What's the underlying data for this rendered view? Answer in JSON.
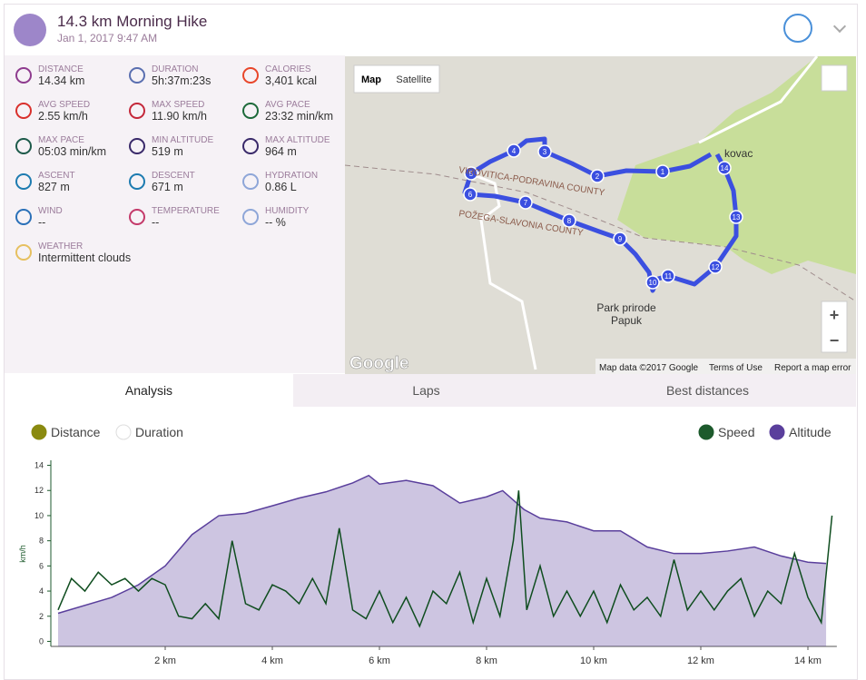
{
  "header": {
    "title": "14.3 km Morning Hike",
    "date": "Jan 1, 2017 9:47 AM"
  },
  "stats": [
    {
      "label": "DISTANCE",
      "value": "14.34 km"
    },
    {
      "label": "DURATION",
      "value": "5h:37m:23s"
    },
    {
      "label": "CALORIES",
      "value": "3,401 kcal"
    },
    {
      "label": "AVG SPEED",
      "value": "2.55 km/h"
    },
    {
      "label": "MAX SPEED",
      "value": "11.90 km/h"
    },
    {
      "label": "AVG PACE",
      "value": "23:32 min/km"
    },
    {
      "label": "MAX PACE",
      "value": "05:03 min/km"
    },
    {
      "label": "MIN ALTITUDE",
      "value": "519 m"
    },
    {
      "label": "MAX ALTITUDE",
      "value": "964 m"
    },
    {
      "label": "ASCENT",
      "value": "827 m"
    },
    {
      "label": "DESCENT",
      "value": "671 m"
    },
    {
      "label": "HYDRATION",
      "value": "0.86 L"
    },
    {
      "label": "WIND",
      "value": "--"
    },
    {
      "label": "TEMPERATURE",
      "value": "--"
    },
    {
      "label": "HUMIDITY",
      "value": "-- %"
    },
    {
      "label": "WEATHER",
      "value": "Intermittent clouds"
    }
  ],
  "map": {
    "buttons": [
      "Map",
      "Satellite"
    ],
    "zoom": [
      "+",
      "−"
    ],
    "labels": [
      "VIROVITICA-PODRAVINA COUNTY",
      "POŽEGA-SLAVONIA COUNTY",
      "Park prirode",
      "Papuk",
      "kovac"
    ],
    "markers": [
      "1",
      "2",
      "3",
      "4",
      "5",
      "6",
      "7",
      "8",
      "9",
      "10",
      "11",
      "12",
      "13",
      "14"
    ],
    "logo": "Google",
    "footer": [
      "Map data ©2017 Google",
      "Terms of Use",
      "Report a map error"
    ]
  },
  "tabs": [
    "Analysis",
    "Laps",
    "Best distances"
  ],
  "toggles": [
    {
      "label": "Distance",
      "checked": true,
      "color": "#8a8a10"
    },
    {
      "label": "Duration",
      "checked": false,
      "color": "#999999"
    },
    {
      "label": "Speed",
      "checked": true,
      "color": "#1d5a2c"
    },
    {
      "label": "Altitude",
      "checked": true,
      "color": "#5a3f9c"
    }
  ],
  "chart_data": {
    "type": "line",
    "y_label": "km/h",
    "xlim": [
      -0.14,
      14.54
    ],
    "ylim": [
      -0.4,
      14.4
    ],
    "y2lim": [
      412,
      1013
    ],
    "xticks": [
      {
        "value": 2,
        "label": "2 km"
      },
      {
        "value": 4,
        "label": "4 km"
      },
      {
        "value": 6,
        "label": "6 km"
      },
      {
        "value": 8,
        "label": "8 km"
      },
      {
        "value": 10,
        "label": "10 km"
      },
      {
        "value": 12,
        "label": "12 km"
      },
      {
        "value": 14,
        "label": "14 km"
      }
    ],
    "yticks": [
      0,
      2,
      4,
      6,
      8,
      10,
      12,
      14
    ],
    "series": [
      {
        "name": "Altitude",
        "color": "#5a3f9c",
        "axis": "y2",
        "x": [
          0,
          1,
          1.5,
          2,
          2.5,
          3,
          3.5,
          4,
          4.5,
          5,
          5.5,
          5.8,
          6,
          6.5,
          7,
          7.5,
          8,
          8.3,
          8.7,
          9,
          9.5,
          10,
          10.5,
          11,
          11.5,
          12,
          12.5,
          13,
          13.5,
          14,
          14.34
        ],
        "values": [
          519,
          570,
          611,
          672,
          773,
          834,
          842,
          866,
          891,
          911,
          940,
          964,
          936,
          948,
          931,
          875,
          895,
          915,
          854,
          826,
          814,
          785,
          785,
          733,
          712,
          712,
          720,
          733,
          704,
          684,
          680
        ]
      },
      {
        "name": "Speed",
        "color": "#0f4d1f",
        "x": [
          0,
          0.25,
          0.5,
          0.75,
          1,
          1.25,
          1.5,
          1.75,
          2,
          2.25,
          2.5,
          2.75,
          3,
          3.25,
          3.5,
          3.75,
          4,
          4.25,
          4.5,
          4.75,
          5,
          5.25,
          5.5,
          5.75,
          6,
          6.25,
          6.5,
          6.75,
          7,
          7.25,
          7.5,
          7.75,
          8,
          8.25,
          8.5,
          8.6,
          8.75,
          9,
          9.25,
          9.5,
          9.75,
          10,
          10.25,
          10.5,
          10.75,
          11,
          11.25,
          11.5,
          11.75,
          12,
          12.25,
          12.5,
          12.75,
          13,
          13.25,
          13.5,
          13.75,
          14,
          14.25,
          14.45
        ],
        "values": [
          2.5,
          5,
          4,
          5.5,
          4.5,
          5,
          4,
          5,
          4.5,
          2,
          1.8,
          3,
          1.8,
          8,
          3,
          2.5,
          4.5,
          4,
          3,
          5,
          3,
          9,
          2.5,
          1.8,
          4,
          1.5,
          3.5,
          1.2,
          4,
          3,
          5.5,
          1.5,
          5,
          2,
          8,
          12,
          2.5,
          6,
          2,
          4,
          2,
          4,
          1.5,
          4.5,
          2.5,
          3.5,
          2,
          6.5,
          2.5,
          4,
          2.5,
          4,
          5,
          2,
          4,
          3,
          7,
          3.5,
          1.5,
          10
        ]
      }
    ]
  }
}
